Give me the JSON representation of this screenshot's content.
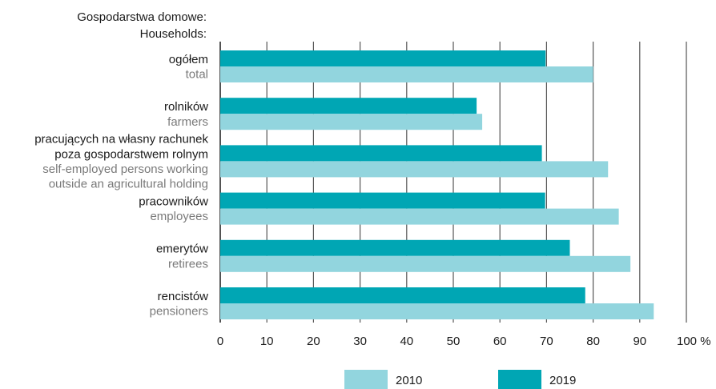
{
  "header": {
    "line1": "Gospodarstwa domowe:",
    "line2": "Households:"
  },
  "colors": {
    "2010": "#92d5de",
    "2019": "#00a6b4",
    "grid": "#555555",
    "axis": "#1a1a1a"
  },
  "chart_data": {
    "type": "bar",
    "orientation": "horizontal",
    "categories": [
      {
        "pl": [
          "ogółem"
        ],
        "en": [
          "total"
        ]
      },
      {
        "pl": [
          "rolników"
        ],
        "en": [
          "farmers"
        ]
      },
      {
        "pl": [
          "pracujących na własny rachunek",
          "poza gospodarstwem rolnym"
        ],
        "en": [
          "self-employed persons working",
          "outside an agricultural holding"
        ]
      },
      {
        "pl": [
          "pracowników"
        ],
        "en": [
          "employees"
        ]
      },
      {
        "pl": [
          "emerytów"
        ],
        "en": [
          "retirees"
        ]
      },
      {
        "pl": [
          "rencistów"
        ],
        "en": [
          "pensioners"
        ]
      }
    ],
    "series": [
      {
        "name": "2019",
        "values": [
          69.8,
          55.0,
          69.0,
          69.7,
          75.0,
          78.3
        ]
      },
      {
        "name": "2010",
        "values": [
          80.0,
          56.2,
          83.2,
          85.5,
          88.0,
          93.0
        ]
      }
    ],
    "xlim": [
      0,
      100
    ],
    "xticks": [
      "0",
      "10",
      "20",
      "30",
      "40",
      "50",
      "60",
      "70",
      "80",
      "90",
      "100 %"
    ],
    "grid": "vertical",
    "legend": {
      "position": "bottom",
      "items": [
        "2010",
        "2019"
      ]
    }
  }
}
